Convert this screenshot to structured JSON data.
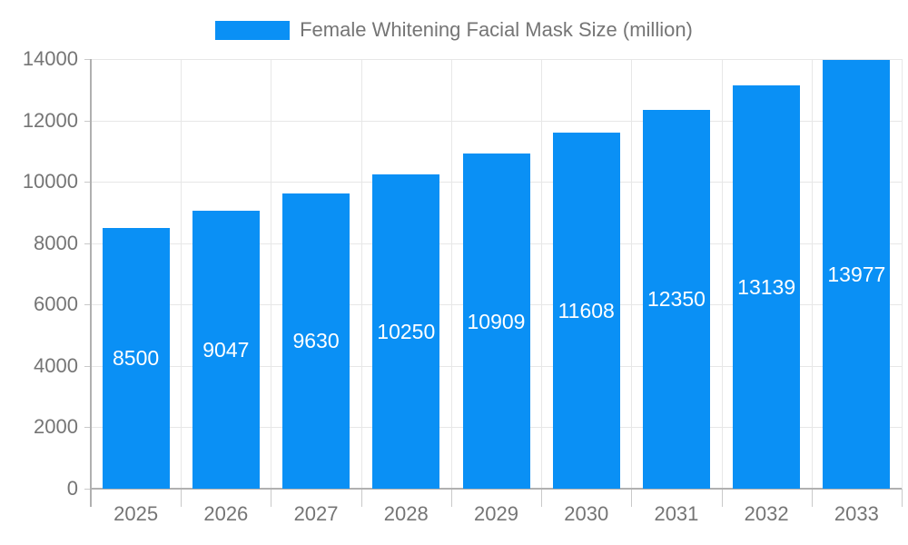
{
  "chart_data": {
    "type": "bar",
    "title": "Female Whitening Facial Mask Size (million)",
    "legend": {
      "label": "Female Whitening Facial Mask Size (million)",
      "position": "top"
    },
    "categories": [
      "2025",
      "2026",
      "2027",
      "2028",
      "2029",
      "2030",
      "2031",
      "2032",
      "2033"
    ],
    "values": [
      8500,
      9047,
      9630,
      10250,
      10909,
      11608,
      12350,
      13139,
      13977
    ],
    "xlabel": "",
    "ylabel": "",
    "ylim": [
      0,
      14000
    ],
    "yticks": [
      0,
      2000,
      4000,
      6000,
      8000,
      10000,
      12000,
      14000
    ],
    "grid": true,
    "colors": {
      "bar": "#0A90F5",
      "bar_label": "#FFFFFF",
      "axis_text": "#757575",
      "gridline": "#E7E7E7",
      "tick": "#C9C9C9",
      "axis_line": "#B0B0B0",
      "background": "#FFFFFF"
    }
  }
}
